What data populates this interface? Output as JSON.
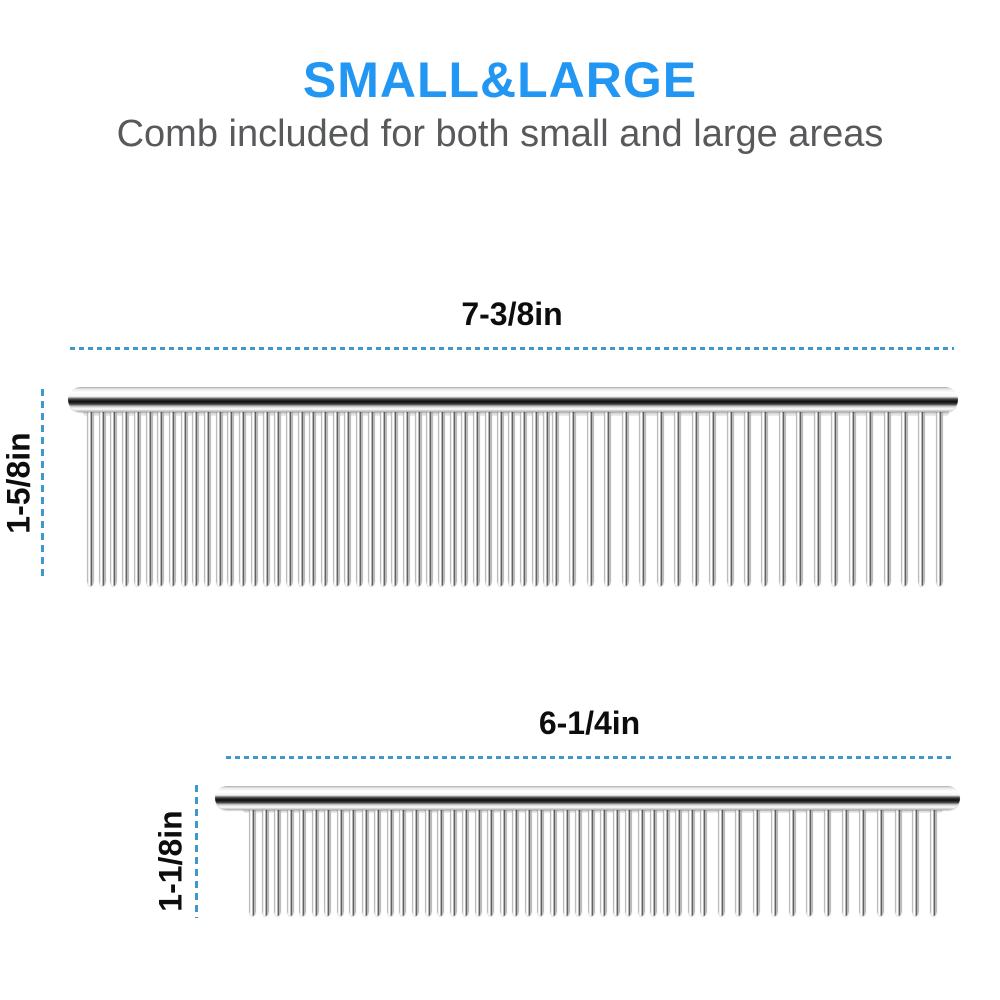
{
  "header": {
    "title": "SMALL&LARGE",
    "subtitle": "Comb included for both small and large areas"
  },
  "colors": {
    "title": "#2196f3",
    "subtitle": "#58595b",
    "dimension_text": "#0d0d0d",
    "dash_line": "#3f98cb",
    "background": "#ffffff",
    "comb_metal_highlight": "#ffffff",
    "comb_metal_dark": "#0c0c0c"
  },
  "combs": [
    {
      "name": "large-comb",
      "width_label": "7-3/8in",
      "height_label": "1-5/8in",
      "fine_teeth": 40,
      "coarse_teeth": 23
    },
    {
      "name": "small-comb",
      "width_label": "6-1/4in",
      "height_label": "1-1/8in",
      "fine_teeth": 36,
      "coarse_teeth": 14
    }
  ]
}
